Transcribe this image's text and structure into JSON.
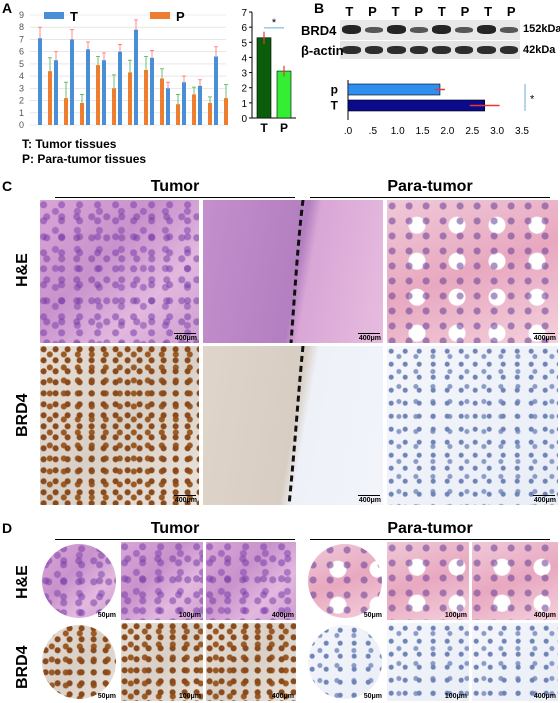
{
  "panels": {
    "a": "A",
    "b": "B",
    "c": "C",
    "d": "D"
  },
  "panel_a": {
    "legend": {
      "t": "T",
      "p": "P"
    },
    "legend_colors": {
      "t": "#4a8fd6",
      "p": "#ed7d31"
    },
    "yticks": [
      "9",
      "8",
      "7",
      "6",
      "5",
      "4",
      "3",
      "2",
      "1",
      "0"
    ],
    "note_t": "T: Tumor tissues",
    "note_p": "P:  Para-tumor tissues",
    "star": "*"
  },
  "chart_data": [
    {
      "type": "bar",
      "ylim": [
        0,
        9
      ],
      "grid": true,
      "series": [
        {
          "name": "T",
          "values": [
            7.1,
            5.3,
            7.0,
            6.2,
            5.3,
            6.0,
            7.8,
            5.5,
            3.0,
            3.5,
            3.2,
            5.6
          ]
        },
        {
          "name": "P",
          "values": [
            4.4,
            2.2,
            1.8,
            4.9,
            3.0,
            4.3,
            4.5,
            3.8,
            1.7,
            2.5,
            1.8,
            2.2
          ]
        }
      ],
      "t_errors": [
        0.9,
        0.7,
        0.8,
        0.6,
        0.6,
        0.6,
        0.8,
        0.6,
        0.5,
        0.5,
        0.5,
        0.8
      ],
      "p_errors": [
        1.1,
        1.3,
        0.7,
        0.7,
        1.1,
        1.0,
        1.1,
        0.8,
        0.8,
        0.6,
        0.5,
        1.1
      ]
    },
    {
      "type": "bar",
      "categories": [
        "T",
        "P"
      ],
      "values": [
        5.3,
        3.1
      ],
      "errors": [
        0.4,
        0.35
      ],
      "ylim": [
        0,
        7
      ],
      "yticks": [
        "7",
        "6",
        "5",
        "4",
        "3",
        "2",
        "1",
        "0"
      ],
      "colors": [
        "#0b5d0b",
        "#33ee33"
      ],
      "annotation": "*"
    },
    {
      "type": "bar",
      "orientation": "horizontal",
      "categories": [
        "p",
        "T"
      ],
      "values": [
        1.85,
        2.75
      ],
      "errors": [
        0.1,
        0.3
      ],
      "xlim": [
        0,
        3.5
      ],
      "xticks": [
        ".0",
        ".5",
        "1.0",
        "1.5",
        "2.0",
        "2.5",
        "3.0",
        "3.5"
      ],
      "colors": [
        "#2f8ff0",
        "#0a0a8a"
      ],
      "annotation": "*"
    }
  ],
  "panel_b": {
    "lanes": [
      "T",
      "P",
      "T",
      "P",
      "T",
      "P",
      "T",
      "P"
    ],
    "brd4": "BRD4",
    "actin": "β-actin",
    "kda1": "152kDa",
    "kda2": "42kDa"
  },
  "panel_c": {
    "tumor": "Tumor",
    "para": "Para-tumor",
    "he": "H&E",
    "brd4": "BRD4",
    "scale": "400μm"
  },
  "panel_d": {
    "tumor": "Tumor",
    "para": "Para-tumor",
    "he": "H&E",
    "brd4": "BRD4",
    "s50": "50μm",
    "s100": "100μm",
    "s400": "400μm"
  }
}
